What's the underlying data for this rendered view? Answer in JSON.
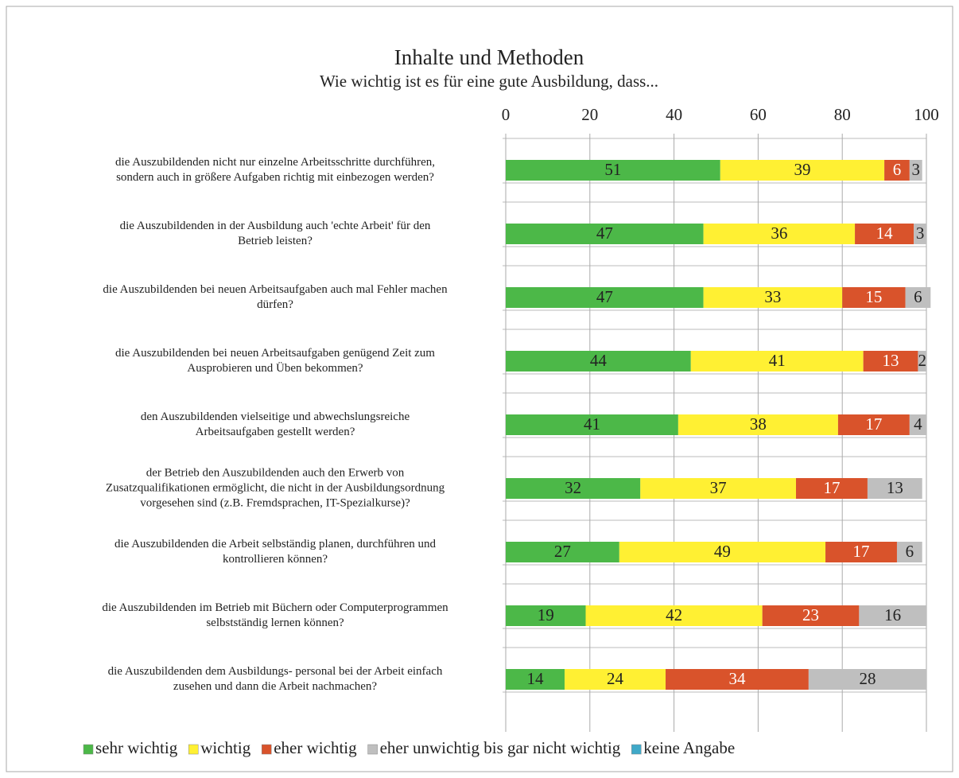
{
  "chart_data": {
    "type": "stacked-barh",
    "title": "Inhalte und Methoden",
    "subtitle": "Wie wichtig ist es für eine gute Ausbildung, dass...",
    "categories": [
      [
        "die Auszubildenden nicht nur einzelne Arbeitsschritte durchführen,",
        "sondern auch in größere Aufgaben richtig mit einbezogen werden?"
      ],
      [
        "die Auszubildenden in der Ausbildung auch 'echte Arbeit' für den",
        "Betrieb leisten?"
      ],
      [
        "die Auszubildenden bei neuen Arbeitsaufgaben auch mal Fehler machen",
        "dürfen?"
      ],
      [
        "die Auszubildenden bei neuen Arbeitsaufgaben genügend Zeit zum",
        "Ausprobieren und Üben bekommen?"
      ],
      [
        "den Auszubildenden vielseitige und abwechslungsreiche",
        "Arbeitsaufgaben gestellt werden?"
      ],
      [
        "der Betrieb den Auszubildenden auch den Erwerb von",
        "Zusatzqualifikationen ermöglicht, die nicht in der Ausbildungsordnung",
        "vorgesehen sind (z.B. Fremdsprachen, IT-Spezialkurse)?"
      ],
      [
        "die Auszubildenden die Arbeit selbständig planen, durchführen und",
        "kontrollieren können?"
      ],
      [
        "die Auszubildenden im Betrieb mit Büchern oder Computerprogrammen",
        "selbstständig lernen können?"
      ],
      [
        "die Auszubildenden dem Ausbildungs- personal bei der Arbeit einfach",
        "zusehen und dann die Arbeit nachmachen?"
      ]
    ],
    "series": [
      {
        "name": "sehr wichtig",
        "color": "#4cb848",
        "label_color": "#222",
        "values": [
          51,
          47,
          47,
          44,
          41,
          32,
          27,
          19,
          14
        ]
      },
      {
        "name": "wichtig",
        "color": "#fff033",
        "label_color": "#222",
        "values": [
          39,
          36,
          33,
          41,
          38,
          37,
          49,
          42,
          24
        ]
      },
      {
        "name": "eher wichtig",
        "color": "#d9532b",
        "label_color": "#fff",
        "values": [
          6,
          14,
          15,
          13,
          17,
          17,
          17,
          23,
          34
        ]
      },
      {
        "name": "eher unwichtig bis gar nicht wichtig",
        "color": "#bfbfbf",
        "label_color": "#222",
        "values": [
          3,
          3,
          6,
          2,
          4,
          13,
          6,
          16,
          28
        ]
      },
      {
        "name": "keine Angabe",
        "color": "#3fa9c8",
        "label_color": "#222",
        "values": [
          0,
          0,
          0,
          0,
          0,
          0,
          0,
          0,
          0
        ]
      }
    ],
    "xlim": [
      0,
      100
    ],
    "xticks": [
      0,
      20,
      40,
      60,
      80,
      100
    ],
    "grid": true,
    "legend": "bottom"
  }
}
